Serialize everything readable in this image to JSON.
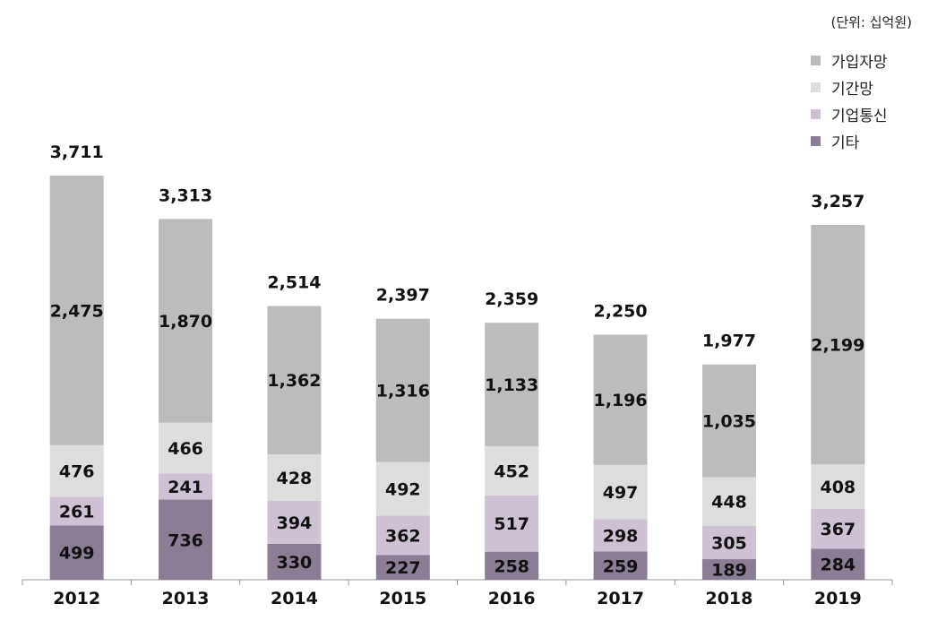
{
  "unit_label": "(단위: 십억원)",
  "chart_data": {
    "type": "bar",
    "stacked": true,
    "categories": [
      "2012",
      "2013",
      "2014",
      "2015",
      "2016",
      "2017",
      "2018",
      "2019"
    ],
    "totals": [
      "3,711",
      "3,313",
      "2,514",
      "2,397",
      "2,359",
      "2,250",
      "1,977",
      "3,257"
    ],
    "series": [
      {
        "name": "기타",
        "color": "#8b7d94",
        "values": [
          499,
          736,
          330,
          227,
          258,
          259,
          189,
          284
        ],
        "labels": [
          "499",
          "736",
          "330",
          "227",
          "258",
          "259",
          "189",
          "284"
        ]
      },
      {
        "name": "기업통신",
        "color": "#cdc1d3",
        "values": [
          261,
          241,
          394,
          362,
          517,
          298,
          305,
          367
        ],
        "labels": [
          "261",
          "241",
          "394",
          "362",
          "517",
          "298",
          "305",
          "367"
        ]
      },
      {
        "name": "기간망",
        "color": "#dddddd",
        "values": [
          476,
          466,
          428,
          492,
          452,
          497,
          448,
          408
        ],
        "labels": [
          "476",
          "466",
          "428",
          "492",
          "452",
          "497",
          "448",
          "408"
        ]
      },
      {
        "name": "가입자망",
        "color": "#bcbcbc",
        "values": [
          2475,
          1870,
          1362,
          1316,
          1133,
          1196,
          1035,
          2199
        ],
        "labels": [
          "2,475",
          "1,870",
          "1,362",
          "1,316",
          "1,133",
          "1,196",
          "1,035",
          "2,199"
        ]
      }
    ],
    "legend_order": [
      "가입자망",
      "기간망",
      "기업통신",
      "기타"
    ],
    "legend_position": "top-right",
    "ylim": [
      0,
      3711
    ],
    "grid": false,
    "title": "",
    "xlabel": "",
    "ylabel": ""
  }
}
